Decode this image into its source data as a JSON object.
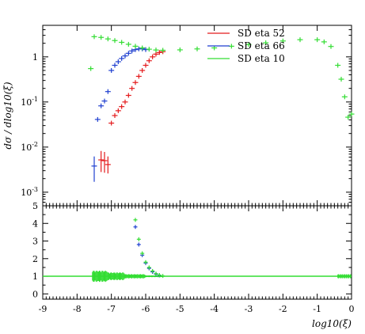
{
  "chart_data": [
    {
      "type": "scatter",
      "panel": "main",
      "ylabel": "dσ / dlog10(ξ)",
      "yscale": "log",
      "xlim": [
        -9,
        0
      ],
      "ylim": [
        0.0005,
        5
      ],
      "y_tick_labels": [
        "10^-3",
        "10^-2",
        "10^-1",
        "1"
      ],
      "legend_position": "top-right",
      "series": [
        {
          "name": "SD eta 52",
          "color": "#e41a1c",
          "points": [
            {
              "x": -7.3,
              "y": 0.0052,
              "lo": 0.0028,
              "hi": 0.0082
            },
            {
              "x": -7.2,
              "y": 0.005,
              "lo": 0.0027,
              "hi": 0.0078
            },
            {
              "x": -7.1,
              "y": 0.0041,
              "lo": 0.0026,
              "hi": 0.0062
            },
            {
              "x": -7.0,
              "y": 0.034
            },
            {
              "x": -6.9,
              "y": 0.05
            },
            {
              "x": -6.8,
              "y": 0.064
            },
            {
              "x": -6.7,
              "y": 0.079
            },
            {
              "x": -6.6,
              "y": 0.1
            },
            {
              "x": -6.5,
              "y": 0.14
            },
            {
              "x": -6.4,
              "y": 0.2
            },
            {
              "x": -6.3,
              "y": 0.27
            },
            {
              "x": -6.2,
              "y": 0.37
            },
            {
              "x": -6.1,
              "y": 0.5
            },
            {
              "x": -6.0,
              "y": 0.65
            },
            {
              "x": -5.9,
              "y": 0.82
            },
            {
              "x": -5.8,
              "y": 1.0
            },
            {
              "x": -5.7,
              "y": 1.15
            },
            {
              "x": -5.6,
              "y": 1.25
            },
            {
              "x": -5.5,
              "y": 1.3
            }
          ]
        },
        {
          "name": "SD eta 66",
          "color": "#1f3fd0",
          "points": [
            {
              "x": -7.5,
              "y": 0.0038,
              "lo": 0.0017,
              "hi": 0.0062
            },
            {
              "x": -7.4,
              "y": 0.041
            },
            {
              "x": -7.3,
              "y": 0.082
            },
            {
              "x": -7.2,
              "y": 0.105
            },
            {
              "x": -7.1,
              "y": 0.17
            },
            {
              "x": -7.0,
              "y": 0.5
            },
            {
              "x": -6.9,
              "y": 0.65
            },
            {
              "x": -6.8,
              "y": 0.78
            },
            {
              "x": -6.7,
              "y": 0.92
            },
            {
              "x": -6.6,
              "y": 1.05
            },
            {
              "x": -6.5,
              "y": 1.2
            },
            {
              "x": -6.4,
              "y": 1.35
            },
            {
              "x": -6.3,
              "y": 1.45
            },
            {
              "x": -6.2,
              "y": 1.5
            },
            {
              "x": -6.1,
              "y": 1.5
            },
            {
              "x": -6.0,
              "y": 1.45
            }
          ]
        },
        {
          "name": "SD eta 10",
          "color": "#33dd33",
          "points": [
            {
              "x": -7.6,
              "y": 0.55
            },
            {
              "x": -7.5,
              "y": 2.8
            },
            {
              "x": -7.3,
              "y": 2.7
            },
            {
              "x": -7.1,
              "y": 2.5
            },
            {
              "x": -6.9,
              "y": 2.3
            },
            {
              "x": -6.7,
              "y": 2.1
            },
            {
              "x": -6.5,
              "y": 1.9
            },
            {
              "x": -6.3,
              "y": 1.72
            },
            {
              "x": -6.1,
              "y": 1.58
            },
            {
              "x": -5.9,
              "y": 1.48
            },
            {
              "x": -5.7,
              "y": 1.42
            },
            {
              "x": -5.5,
              "y": 1.4
            },
            {
              "x": -5.0,
              "y": 1.43
            },
            {
              "x": -4.5,
              "y": 1.5
            },
            {
              "x": -4.0,
              "y": 1.58
            },
            {
              "x": -3.5,
              "y": 1.72
            },
            {
              "x": -3.0,
              "y": 1.88
            },
            {
              "x": -2.5,
              "y": 2.05
            },
            {
              "x": -2.0,
              "y": 2.25
            },
            {
              "x": -1.5,
              "y": 2.4
            },
            {
              "x": -1.0,
              "y": 2.4
            },
            {
              "x": -0.8,
              "y": 2.15
            },
            {
              "x": -0.6,
              "y": 1.7
            },
            {
              "x": -0.4,
              "y": 0.65
            },
            {
              "x": -0.3,
              "y": 0.32
            },
            {
              "x": -0.2,
              "y": 0.13
            },
            {
              "x": -0.1,
              "y": 0.046
            },
            {
              "x": 0.0,
              "y": 0.054
            }
          ]
        }
      ]
    },
    {
      "type": "scatter",
      "panel": "ratio",
      "xlabel": "log10(ξ)",
      "xlim": [
        -9,
        0
      ],
      "ylim": [
        -0.3,
        5
      ],
      "x_ticks": [
        -9,
        -8,
        -7,
        -6,
        -5,
        -4,
        -3,
        -2,
        -1,
        0
      ],
      "y_ticks": [
        0,
        1,
        2,
        3,
        4,
        5
      ],
      "reference_line": 1,
      "series": [
        {
          "name": "SD eta 66",
          "color": "#1f3fd0",
          "points": [
            {
              "x": -6.3,
              "y": 3.8
            },
            {
              "x": -6.2,
              "y": 2.8
            },
            {
              "x": -6.1,
              "y": 2.2
            },
            {
              "x": -6.0,
              "y": 1.75
            },
            {
              "x": -5.9,
              "y": 1.45
            },
            {
              "x": -5.8,
              "y": 1.25
            },
            {
              "x": -5.7,
              "y": 1.12
            },
            {
              "x": -5.6,
              "y": 1.05
            }
          ]
        },
        {
          "name": "SD eta 10",
          "color": "#33dd33",
          "points": [
            {
              "x": -6.3,
              "y": 4.2
            },
            {
              "x": -6.2,
              "y": 3.1
            },
            {
              "x": -6.1,
              "y": 2.3
            },
            {
              "x": -6.0,
              "y": 1.8
            },
            {
              "x": -5.9,
              "y": 1.5
            },
            {
              "x": -5.8,
              "y": 1.3
            },
            {
              "x": -5.7,
              "y": 1.15
            },
            {
              "x": -5.6,
              "y": 1.07
            },
            {
              "x": -5.5,
              "y": 1.02
            }
          ]
        }
      ]
    }
  ]
}
